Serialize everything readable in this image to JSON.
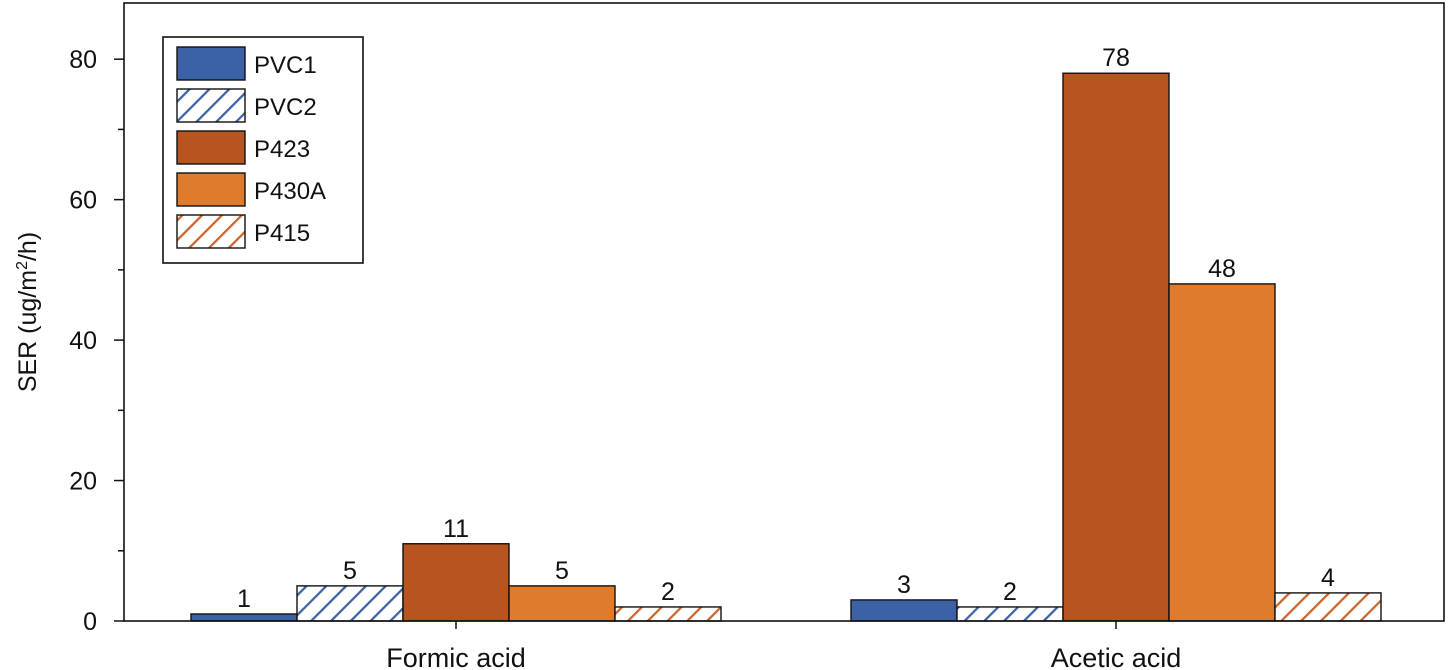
{
  "chart_data": {
    "type": "bar",
    "title": "",
    "xlabel": "",
    "ylabel": "SER (ug/m",
    "ylabel_sup": "2",
    "ylabel_tail": "/h)",
    "ylim": [
      0,
      88
    ],
    "yticks": [
      0,
      20,
      40,
      60,
      80
    ],
    "grid": false,
    "legend_position": "top-left",
    "categories": [
      "Formic acid",
      "Acetic acid"
    ],
    "series": [
      {
        "name": "PVC1",
        "values": [
          1,
          3
        ],
        "color": "#3b62a6",
        "hatched": false
      },
      {
        "name": "PVC2",
        "values": [
          5,
          2
        ],
        "color": "#3b62a6",
        "hatched": true
      },
      {
        "name": "P423",
        "values": [
          11,
          78
        ],
        "color": "#b85420",
        "hatched": false
      },
      {
        "name": "P430A",
        "values": [
          5,
          48
        ],
        "color": "#e07b2b",
        "hatched": false
      },
      {
        "name": "P415",
        "values": [
          2,
          4
        ],
        "color": "#c9642a",
        "hatched": true
      }
    ]
  }
}
